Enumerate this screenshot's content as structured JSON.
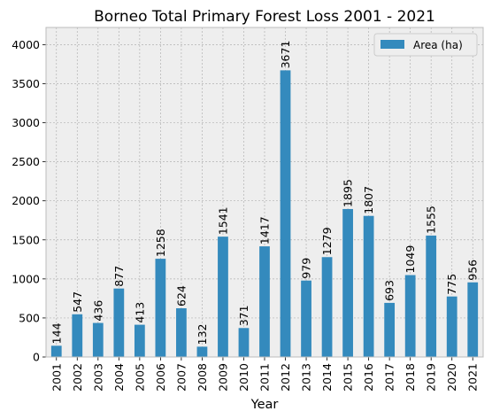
{
  "chart_data": {
    "type": "bar",
    "title": "Borneo Total Primary Forest Loss 2001 - 2021",
    "xlabel": "Year",
    "ylabel": "",
    "categories": [
      "2001",
      "2002",
      "2003",
      "2004",
      "2005",
      "2006",
      "2007",
      "2008",
      "2009",
      "2010",
      "2011",
      "2012",
      "2013",
      "2014",
      "2015",
      "2016",
      "2017",
      "2018",
      "2019",
      "2020",
      "2021"
    ],
    "series": [
      {
        "name": "Area (ha)",
        "color": "#348abd",
        "values": [
          144,
          547,
          436,
          877,
          413,
          1258,
          624,
          132,
          1541,
          371,
          1417,
          3671,
          979,
          1279,
          1895,
          1807,
          693,
          1049,
          1555,
          775,
          956
        ]
      }
    ],
    "ylim": [
      0,
      4220
    ],
    "yticks": [
      0,
      500,
      1000,
      1500,
      2000,
      2500,
      3000,
      3500,
      4000
    ],
    "ytick_labels": [
      "0",
      "500",
      "1000",
      "1500",
      "2000",
      "2500",
      "3000",
      "3500",
      "4000"
    ],
    "grid": true,
    "legend_position": "top-right",
    "data_labels": true,
    "background": "#eeeeee"
  }
}
